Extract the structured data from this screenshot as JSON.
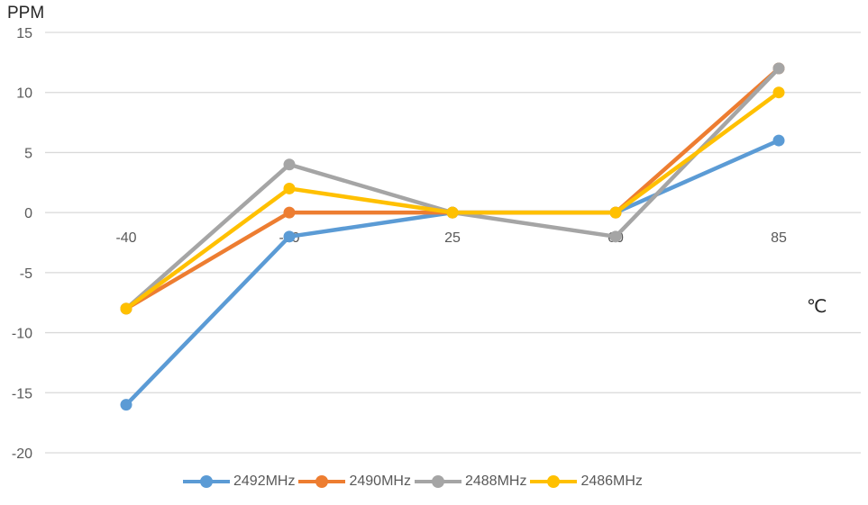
{
  "chart_data": {
    "type": "line",
    "title": "",
    "xlabel": "℃",
    "ylabel": "PPM",
    "categories": [
      "-40",
      "-20",
      "25",
      "60",
      "85"
    ],
    "ylim": [
      -20,
      15
    ],
    "yticks": [
      15,
      10,
      5,
      0,
      -5,
      -10,
      -15,
      -20
    ],
    "grid": true,
    "legend_position": "bottom",
    "series": [
      {
        "name": "2492MHz",
        "color": "#5B9BD5",
        "values": [
          -16,
          -2,
          0,
          0,
          6
        ]
      },
      {
        "name": "2490MHz",
        "color": "#ED7D31",
        "values": [
          -8,
          0,
          0,
          0,
          12
        ]
      },
      {
        "name": "2488MHz",
        "color": "#A5A5A5",
        "values": [
          -8,
          4,
          0,
          -2,
          12
        ]
      },
      {
        "name": "2486MHz",
        "color": "#FFC000",
        "values": [
          -8,
          2,
          0,
          0,
          10
        ]
      }
    ]
  },
  "labels": {
    "y_axis_title": "PPM",
    "x_axis_unit": "℃"
  }
}
